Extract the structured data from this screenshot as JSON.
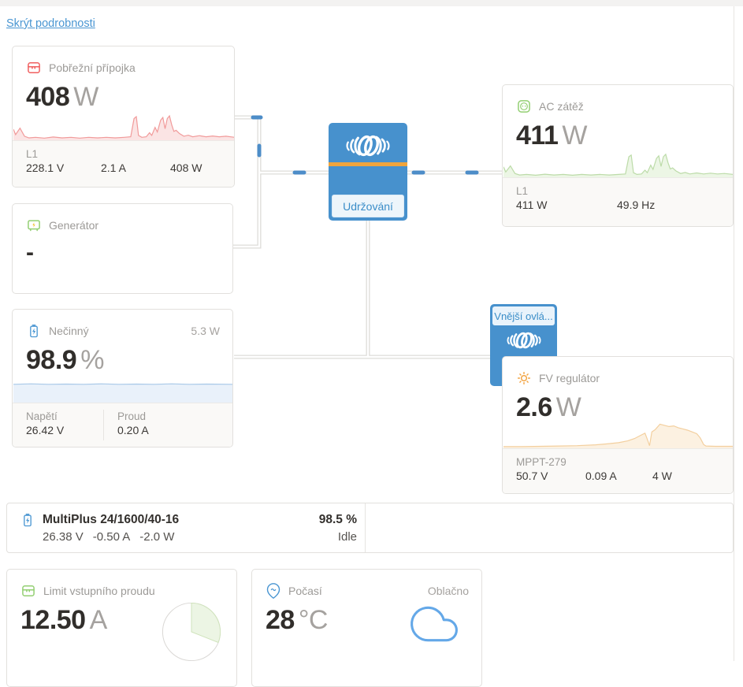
{
  "page": {
    "hide_details_link": "Skrýt podrobnosti"
  },
  "colors": {
    "accent_blue": "#4791cd",
    "stripe_orange": "#f0a43c",
    "link_blue": "#4a96d2",
    "shore_red": "#f05f5f",
    "load_green": "#a9d58f",
    "pv_orange": "#f3c68d",
    "battery_blue": "#a9c9e8",
    "wire_gray": "#dedcd9",
    "wire_dash_blue": "#3b82c4"
  },
  "cards": {
    "shore": {
      "title": "Pobřežní přípojka",
      "value": "408",
      "unit": "W",
      "footer_label": "L1",
      "footer_values": [
        "228.1 V",
        "2.1 A",
        "408 W"
      ]
    },
    "generator": {
      "title": "Generátor",
      "value": "-"
    },
    "battery": {
      "title": "Nečinný",
      "power_badge": "5.3 W",
      "value": "98.9",
      "unit": "%",
      "footer_cols": [
        {
          "label": "Napětí",
          "value": "26.42 V"
        },
        {
          "label": "Proud",
          "value": "0.20 A"
        }
      ]
    },
    "inverter": {
      "status": "Udržování"
    },
    "ac_load": {
      "title": "AC zátěž",
      "value": "411",
      "unit": "W",
      "footer_label": "L1",
      "footer_values": [
        "411 W",
        "49.9 Hz"
      ]
    },
    "mppt_box": {
      "label": "Vnější ovlá..."
    },
    "pv": {
      "title": "FV regulátor",
      "value": "2.6",
      "unit": "W",
      "footer_label": "MPPT-279",
      "footer_values": [
        "50.7 V",
        "0.09 A",
        "4 W"
      ]
    },
    "multiplus": {
      "title": "MultiPlus 24/1600/40-16",
      "values": [
        "26.38 V",
        "-0.50 A",
        "-2.0 W"
      ],
      "soc": "98.5 %",
      "state": "Idle"
    },
    "input_limit": {
      "title": "Limit vstupního proudu",
      "value": "12.50",
      "unit": "A"
    },
    "weather": {
      "title": "Počasí",
      "condition": "Oblačno",
      "value": "28",
      "unit": "°C"
    }
  },
  "chart_data": [
    {
      "id": "shore_spark",
      "type": "area",
      "title": "Pobřežní přípojka (W)",
      "axes_visible": false,
      "x": "time (unlabeled)",
      "y_normalized_0_1": true,
      "points": [
        [
          0,
          0.38
        ],
        [
          1,
          0.18
        ],
        [
          3,
          0.42
        ],
        [
          5,
          0.12
        ],
        [
          7,
          0.06
        ],
        [
          10,
          0.08
        ],
        [
          14,
          0.05
        ],
        [
          18,
          0.09
        ],
        [
          22,
          0.06
        ],
        [
          26,
          0.08
        ],
        [
          30,
          0.05
        ],
        [
          34,
          0.08
        ],
        [
          38,
          0.06
        ],
        [
          42,
          0.08
        ],
        [
          46,
          0.06
        ],
        [
          50,
          0.08
        ],
        [
          53,
          0.1
        ],
        [
          54.5,
          0.78
        ],
        [
          55.5,
          0.85
        ],
        [
          56.5,
          0.15
        ],
        [
          58,
          0.08
        ],
        [
          60,
          0.1
        ],
        [
          61.5,
          0.25
        ],
        [
          62.5,
          0.15
        ],
        [
          64,
          0.45
        ],
        [
          65,
          0.28
        ],
        [
          66.5,
          0.72
        ],
        [
          67.5,
          0.82
        ],
        [
          68.5,
          0.4
        ],
        [
          69.5,
          0.78
        ],
        [
          70.5,
          0.88
        ],
        [
          71.5,
          0.55
        ],
        [
          72.5,
          0.3
        ],
        [
          73.5,
          0.34
        ],
        [
          75,
          0.22
        ],
        [
          77,
          0.12
        ],
        [
          79,
          0.16
        ],
        [
          81,
          0.1
        ],
        [
          84,
          0.14
        ],
        [
          87,
          0.1
        ],
        [
          90,
          0.13
        ],
        [
          93,
          0.1
        ],
        [
          96,
          0.12
        ],
        [
          100,
          0.08
        ]
      ],
      "line_color": "#f19a9a",
      "fill_color": "#fbe4e4"
    },
    {
      "id": "acload_spark",
      "type": "area",
      "title": "AC zátěž (W)",
      "axes_visible": false,
      "x": "time (unlabeled)",
      "y_normalized_0_1": true,
      "points": [
        [
          0,
          0.38
        ],
        [
          1,
          0.18
        ],
        [
          3,
          0.42
        ],
        [
          5,
          0.12
        ],
        [
          7,
          0.06
        ],
        [
          10,
          0.08
        ],
        [
          14,
          0.05
        ],
        [
          18,
          0.09
        ],
        [
          22,
          0.06
        ],
        [
          26,
          0.08
        ],
        [
          30,
          0.05
        ],
        [
          34,
          0.08
        ],
        [
          38,
          0.06
        ],
        [
          42,
          0.08
        ],
        [
          46,
          0.06
        ],
        [
          50,
          0.08
        ],
        [
          53,
          0.1
        ],
        [
          54.5,
          0.78
        ],
        [
          55.5,
          0.85
        ],
        [
          56.5,
          0.15
        ],
        [
          58,
          0.08
        ],
        [
          60,
          0.1
        ],
        [
          61.5,
          0.25
        ],
        [
          62.5,
          0.15
        ],
        [
          64,
          0.45
        ],
        [
          65,
          0.28
        ],
        [
          66.5,
          0.72
        ],
        [
          67.5,
          0.82
        ],
        [
          68.5,
          0.4
        ],
        [
          69.5,
          0.78
        ],
        [
          70.5,
          0.88
        ],
        [
          71.5,
          0.55
        ],
        [
          72.5,
          0.3
        ],
        [
          73.5,
          0.34
        ],
        [
          75,
          0.22
        ],
        [
          77,
          0.12
        ],
        [
          79,
          0.16
        ],
        [
          81,
          0.1
        ],
        [
          84,
          0.14
        ],
        [
          87,
          0.1
        ],
        [
          90,
          0.13
        ],
        [
          93,
          0.1
        ],
        [
          96,
          0.12
        ],
        [
          100,
          0.08
        ]
      ],
      "line_color": "#bcdba8",
      "fill_color": "#ecf6e5"
    },
    {
      "id": "pv_spark",
      "type": "area",
      "title": "FV regulátor (W)",
      "axes_visible": false,
      "x": "time (unlabeled)",
      "y_normalized_0_1": true,
      "points": [
        [
          0,
          0.03
        ],
        [
          8,
          0.03
        ],
        [
          16,
          0.04
        ],
        [
          24,
          0.05
        ],
        [
          32,
          0.06
        ],
        [
          40,
          0.09
        ],
        [
          45,
          0.12
        ],
        [
          50,
          0.16
        ],
        [
          54,
          0.22
        ],
        [
          57,
          0.3
        ],
        [
          60,
          0.42
        ],
        [
          61.5,
          0.48
        ],
        [
          62.5,
          0.28
        ],
        [
          63.5,
          0.06
        ],
        [
          64.5,
          0.52
        ],
        [
          66,
          0.6
        ],
        [
          68,
          0.78
        ],
        [
          70,
          0.74
        ],
        [
          72,
          0.7
        ],
        [
          74,
          0.72
        ],
        [
          76,
          0.66
        ],
        [
          78,
          0.62
        ],
        [
          80,
          0.58
        ],
        [
          82,
          0.52
        ],
        [
          84,
          0.46
        ],
        [
          85.5,
          0.32
        ],
        [
          87,
          0.1
        ],
        [
          88,
          0.05
        ],
        [
          92,
          0.04
        ],
        [
          100,
          0.04
        ]
      ],
      "line_color": "#f3cf9e",
      "fill_color": "#fcf1e1"
    },
    {
      "id": "battery_spark",
      "type": "area",
      "title": "Stav nabití (%)",
      "axes_visible": false,
      "x": "time (unlabeled)",
      "y_normalized_0_1": true,
      "points": [
        [
          0,
          0.74
        ],
        [
          8,
          0.76
        ],
        [
          16,
          0.74
        ],
        [
          24,
          0.75
        ],
        [
          32,
          0.74
        ],
        [
          40,
          0.76
        ],
        [
          48,
          0.74
        ],
        [
          56,
          0.75
        ],
        [
          64,
          0.74
        ],
        [
          72,
          0.76
        ],
        [
          80,
          0.74
        ],
        [
          88,
          0.75
        ],
        [
          100,
          0.74
        ]
      ],
      "line_color": "#a9c9e8",
      "fill_color": "#e9f1fa"
    },
    {
      "id": "input_limit_gauge",
      "type": "pie",
      "title": "Limit vstupního proudu",
      "value": 12.5,
      "assumed_max": 40,
      "fraction": 0.31,
      "slice_fill": "#ecf5e4",
      "slice_edge": "#cfe3bb",
      "ring_color": "#d9d7d4"
    }
  ]
}
